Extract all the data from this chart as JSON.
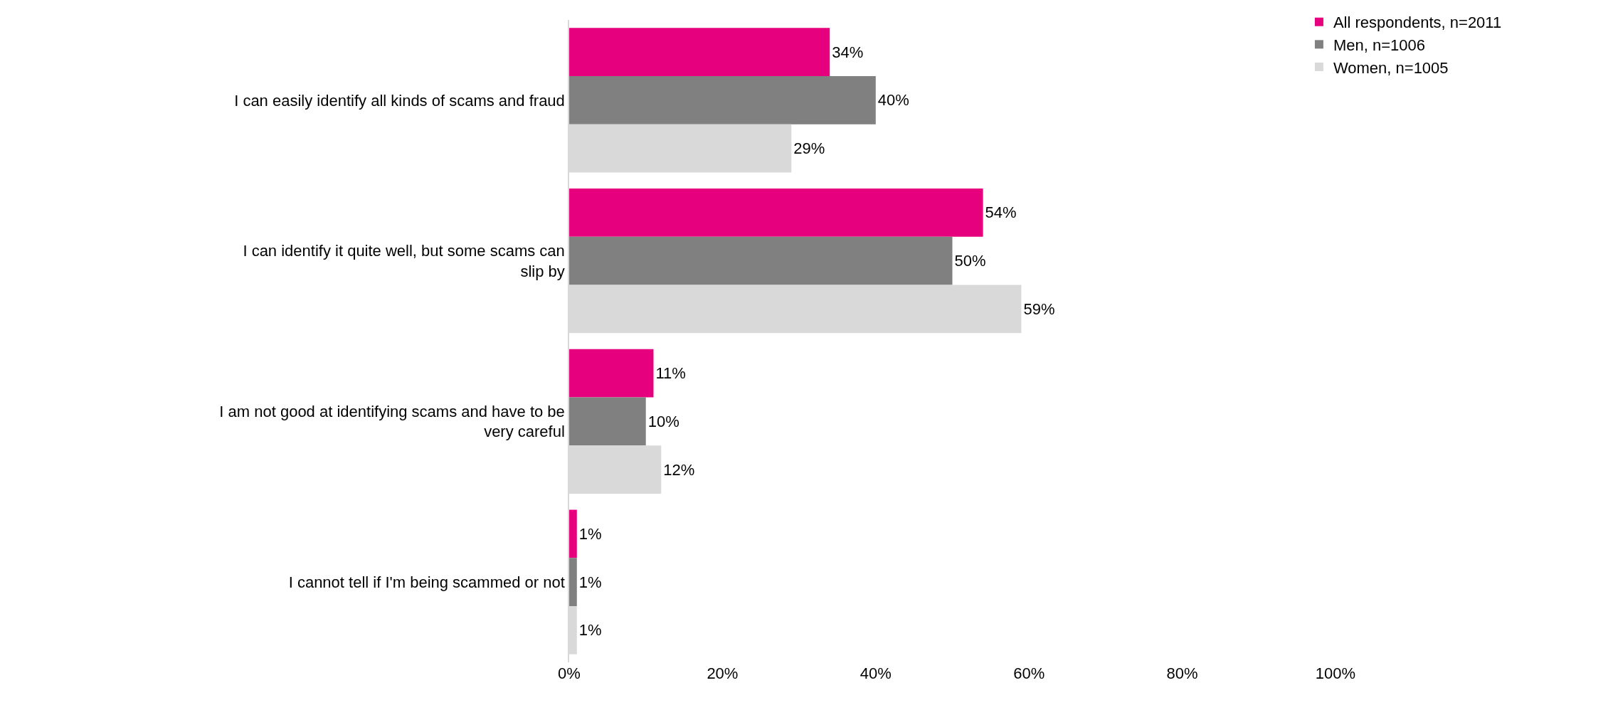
{
  "chart_data": {
    "type": "bar",
    "orientation": "horizontal",
    "categories": [
      "I can easily identify all kinds of scams and fraud",
      "I can identify it quite well, but some scams can slip by",
      "I am not good at identifying scams and have to be very careful",
      "I cannot tell if I'm being scammed or not"
    ],
    "series": [
      {
        "name": "All respondents, n=2011",
        "color": "#e6007e",
        "values": [
          34,
          54,
          11,
          1
        ],
        "value_labels": [
          "34%",
          "54%",
          "11%",
          "1%"
        ]
      },
      {
        "name": "Men, n=1006",
        "color": "#808080",
        "values": [
          40,
          50,
          10,
          1
        ],
        "value_labels": [
          "40%",
          "50%",
          "10%",
          "1%"
        ]
      },
      {
        "name": "Women, n=1005",
        "color": "#d9d9d9",
        "values": [
          29,
          59,
          12,
          1
        ],
        "value_labels": [
          "29%",
          "59%",
          "12%",
          "1%"
        ]
      }
    ],
    "xlim": [
      0,
      100
    ],
    "xticks": [
      {
        "value": 0,
        "label": "0%"
      },
      {
        "value": 20,
        "label": "20%"
      },
      {
        "value": 40,
        "label": "40%"
      },
      {
        "value": 60,
        "label": "60%"
      },
      {
        "value": 80,
        "label": "80%"
      },
      {
        "value": 100,
        "label": "100%"
      }
    ],
    "legend": "top right"
  }
}
